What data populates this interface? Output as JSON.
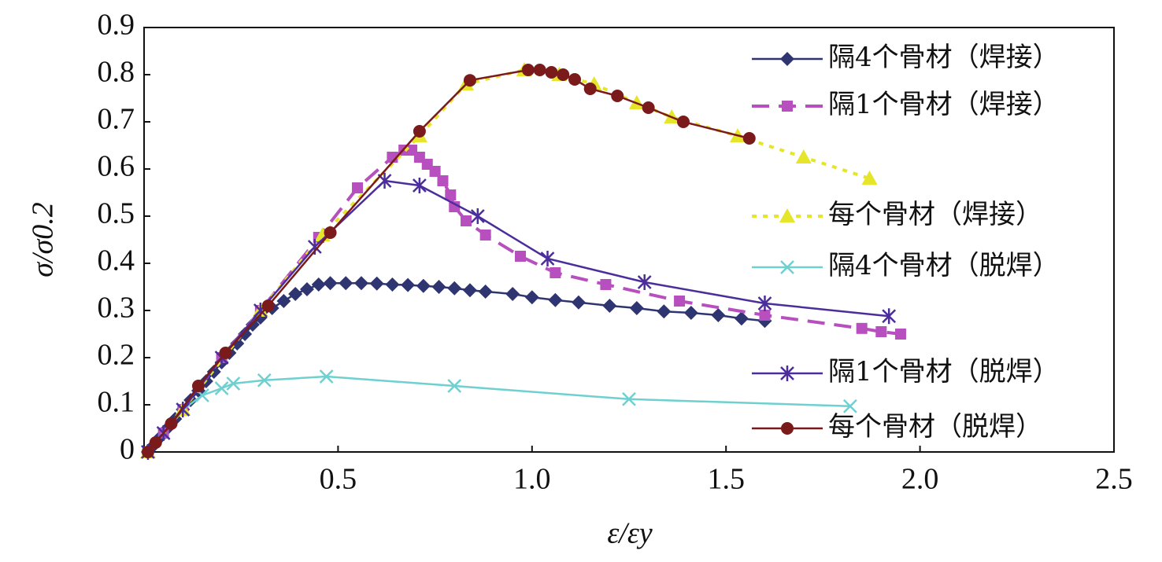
{
  "chart_data": {
    "type": "line",
    "xlabel": "ε/εy",
    "ylabel": "σ/σ0.2",
    "xlim": [
      0,
      2.5
    ],
    "ylim": [
      0,
      0.9
    ],
    "xticks": [
      0.5,
      {
        "value": 1,
        "label": "1.0"
      },
      1.5,
      {
        "value": 2,
        "label": "2.0"
      },
      2.5
    ],
    "yticks": [
      0,
      0.1,
      0.2,
      0.3,
      0.4,
      0.5,
      0.6,
      0.7,
      0.8,
      0.9
    ],
    "series": [
      {
        "name": "隔4个骨材（焊接）",
        "color": "#2e3570",
        "marker": "diamond",
        "dash": "solid",
        "x": [
          0.01,
          0.02,
          0.04,
          0.06,
          0.08,
          0.1,
          0.12,
          0.14,
          0.16,
          0.18,
          0.2,
          0.22,
          0.24,
          0.26,
          0.28,
          0.3,
          0.33,
          0.36,
          0.39,
          0.42,
          0.45,
          0.48,
          0.52,
          0.56,
          0.6,
          0.64,
          0.68,
          0.72,
          0.76,
          0.8,
          0.84,
          0.88,
          0.95,
          1.0,
          1.06,
          1.12,
          1.2,
          1.27,
          1.34,
          1.41,
          1.48,
          1.54,
          1.6
        ],
        "values": [
          0,
          0.01,
          0.03,
          0.05,
          0.07,
          0.09,
          0.11,
          0.13,
          0.15,
          0.17,
          0.19,
          0.21,
          0.23,
          0.25,
          0.27,
          0.285,
          0.305,
          0.32,
          0.335,
          0.345,
          0.355,
          0.358,
          0.358,
          0.358,
          0.357,
          0.355,
          0.354,
          0.352,
          0.35,
          0.347,
          0.343,
          0.34,
          0.335,
          0.328,
          0.322,
          0.317,
          0.31,
          0.305,
          0.298,
          0.295,
          0.29,
          0.283,
          0.278
        ]
      },
      {
        "name": "隔1个骨材（焊接）",
        "color": "#b84fbf",
        "marker": "square",
        "dash": "dash",
        "x": [
          0.01,
          0.05,
          0.1,
          0.2,
          0.3,
          0.45,
          0.55,
          0.64,
          0.67,
          0.69,
          0.71,
          0.73,
          0.75,
          0.77,
          0.79,
          0.8,
          0.83,
          0.88,
          0.97,
          1.06,
          1.19,
          1.38,
          1.6,
          1.85,
          1.9,
          1.95
        ],
        "values": [
          0,
          0.04,
          0.09,
          0.2,
          0.3,
          0.455,
          0.56,
          0.625,
          0.64,
          0.64,
          0.625,
          0.61,
          0.595,
          0.575,
          0.545,
          0.52,
          0.49,
          0.46,
          0.415,
          0.38,
          0.355,
          0.32,
          0.29,
          0.262,
          0.255,
          0.25
        ]
      },
      {
        "name": "每个骨材（焊接）",
        "color": "#e5e52a",
        "marker": "triangle",
        "dash": "dot",
        "x": [
          0.01,
          0.1,
          0.3,
          0.46,
          0.71,
          0.83,
          0.98,
          1.07,
          1.16,
          1.27,
          1.36,
          1.53,
          1.7,
          1.87
        ],
        "values": [
          0,
          0.09,
          0.3,
          0.46,
          0.67,
          0.78,
          0.81,
          0.8,
          0.78,
          0.74,
          0.71,
          0.67,
          0.625,
          0.58
        ]
      },
      {
        "name": "隔4个骨材（脱焊）",
        "color": "#6fd0d0",
        "marker": "x",
        "dash": "solid",
        "x": [
          0.01,
          0.05,
          0.1,
          0.15,
          0.2,
          0.23,
          0.31,
          0.47,
          0.8,
          1.25,
          1.82
        ],
        "values": [
          0,
          0.04,
          0.09,
          0.12,
          0.135,
          0.145,
          0.152,
          0.16,
          0.14,
          0.112,
          0.097
        ]
      },
      {
        "name": "隔1个骨材（脱焊）",
        "color": "#4b2d9b",
        "marker": "star",
        "dash": "solid",
        "x": [
          0.01,
          0.05,
          0.1,
          0.2,
          0.3,
          0.44,
          0.62,
          0.71,
          0.86,
          1.04,
          1.29,
          1.6,
          1.92
        ],
        "values": [
          0,
          0.04,
          0.09,
          0.2,
          0.3,
          0.435,
          0.575,
          0.565,
          0.5,
          0.41,
          0.36,
          0.315,
          0.288
        ]
      },
      {
        "name": "每个骨材（脱焊）",
        "color": "#7b1a1a",
        "marker": "circle",
        "dash": "solid",
        "x": [
          0.01,
          0.03,
          0.07,
          0.14,
          0.21,
          0.32,
          0.48,
          0.71,
          0.84,
          0.99,
          1.02,
          1.05,
          1.08,
          1.11,
          1.15,
          1.22,
          1.3,
          1.39,
          1.56
        ],
        "values": [
          0,
          0.02,
          0.06,
          0.14,
          0.21,
          0.31,
          0.465,
          0.68,
          0.788,
          0.81,
          0.81,
          0.805,
          0.8,
          0.79,
          0.77,
          0.755,
          0.73,
          0.7,
          0.665
        ]
      }
    ]
  }
}
